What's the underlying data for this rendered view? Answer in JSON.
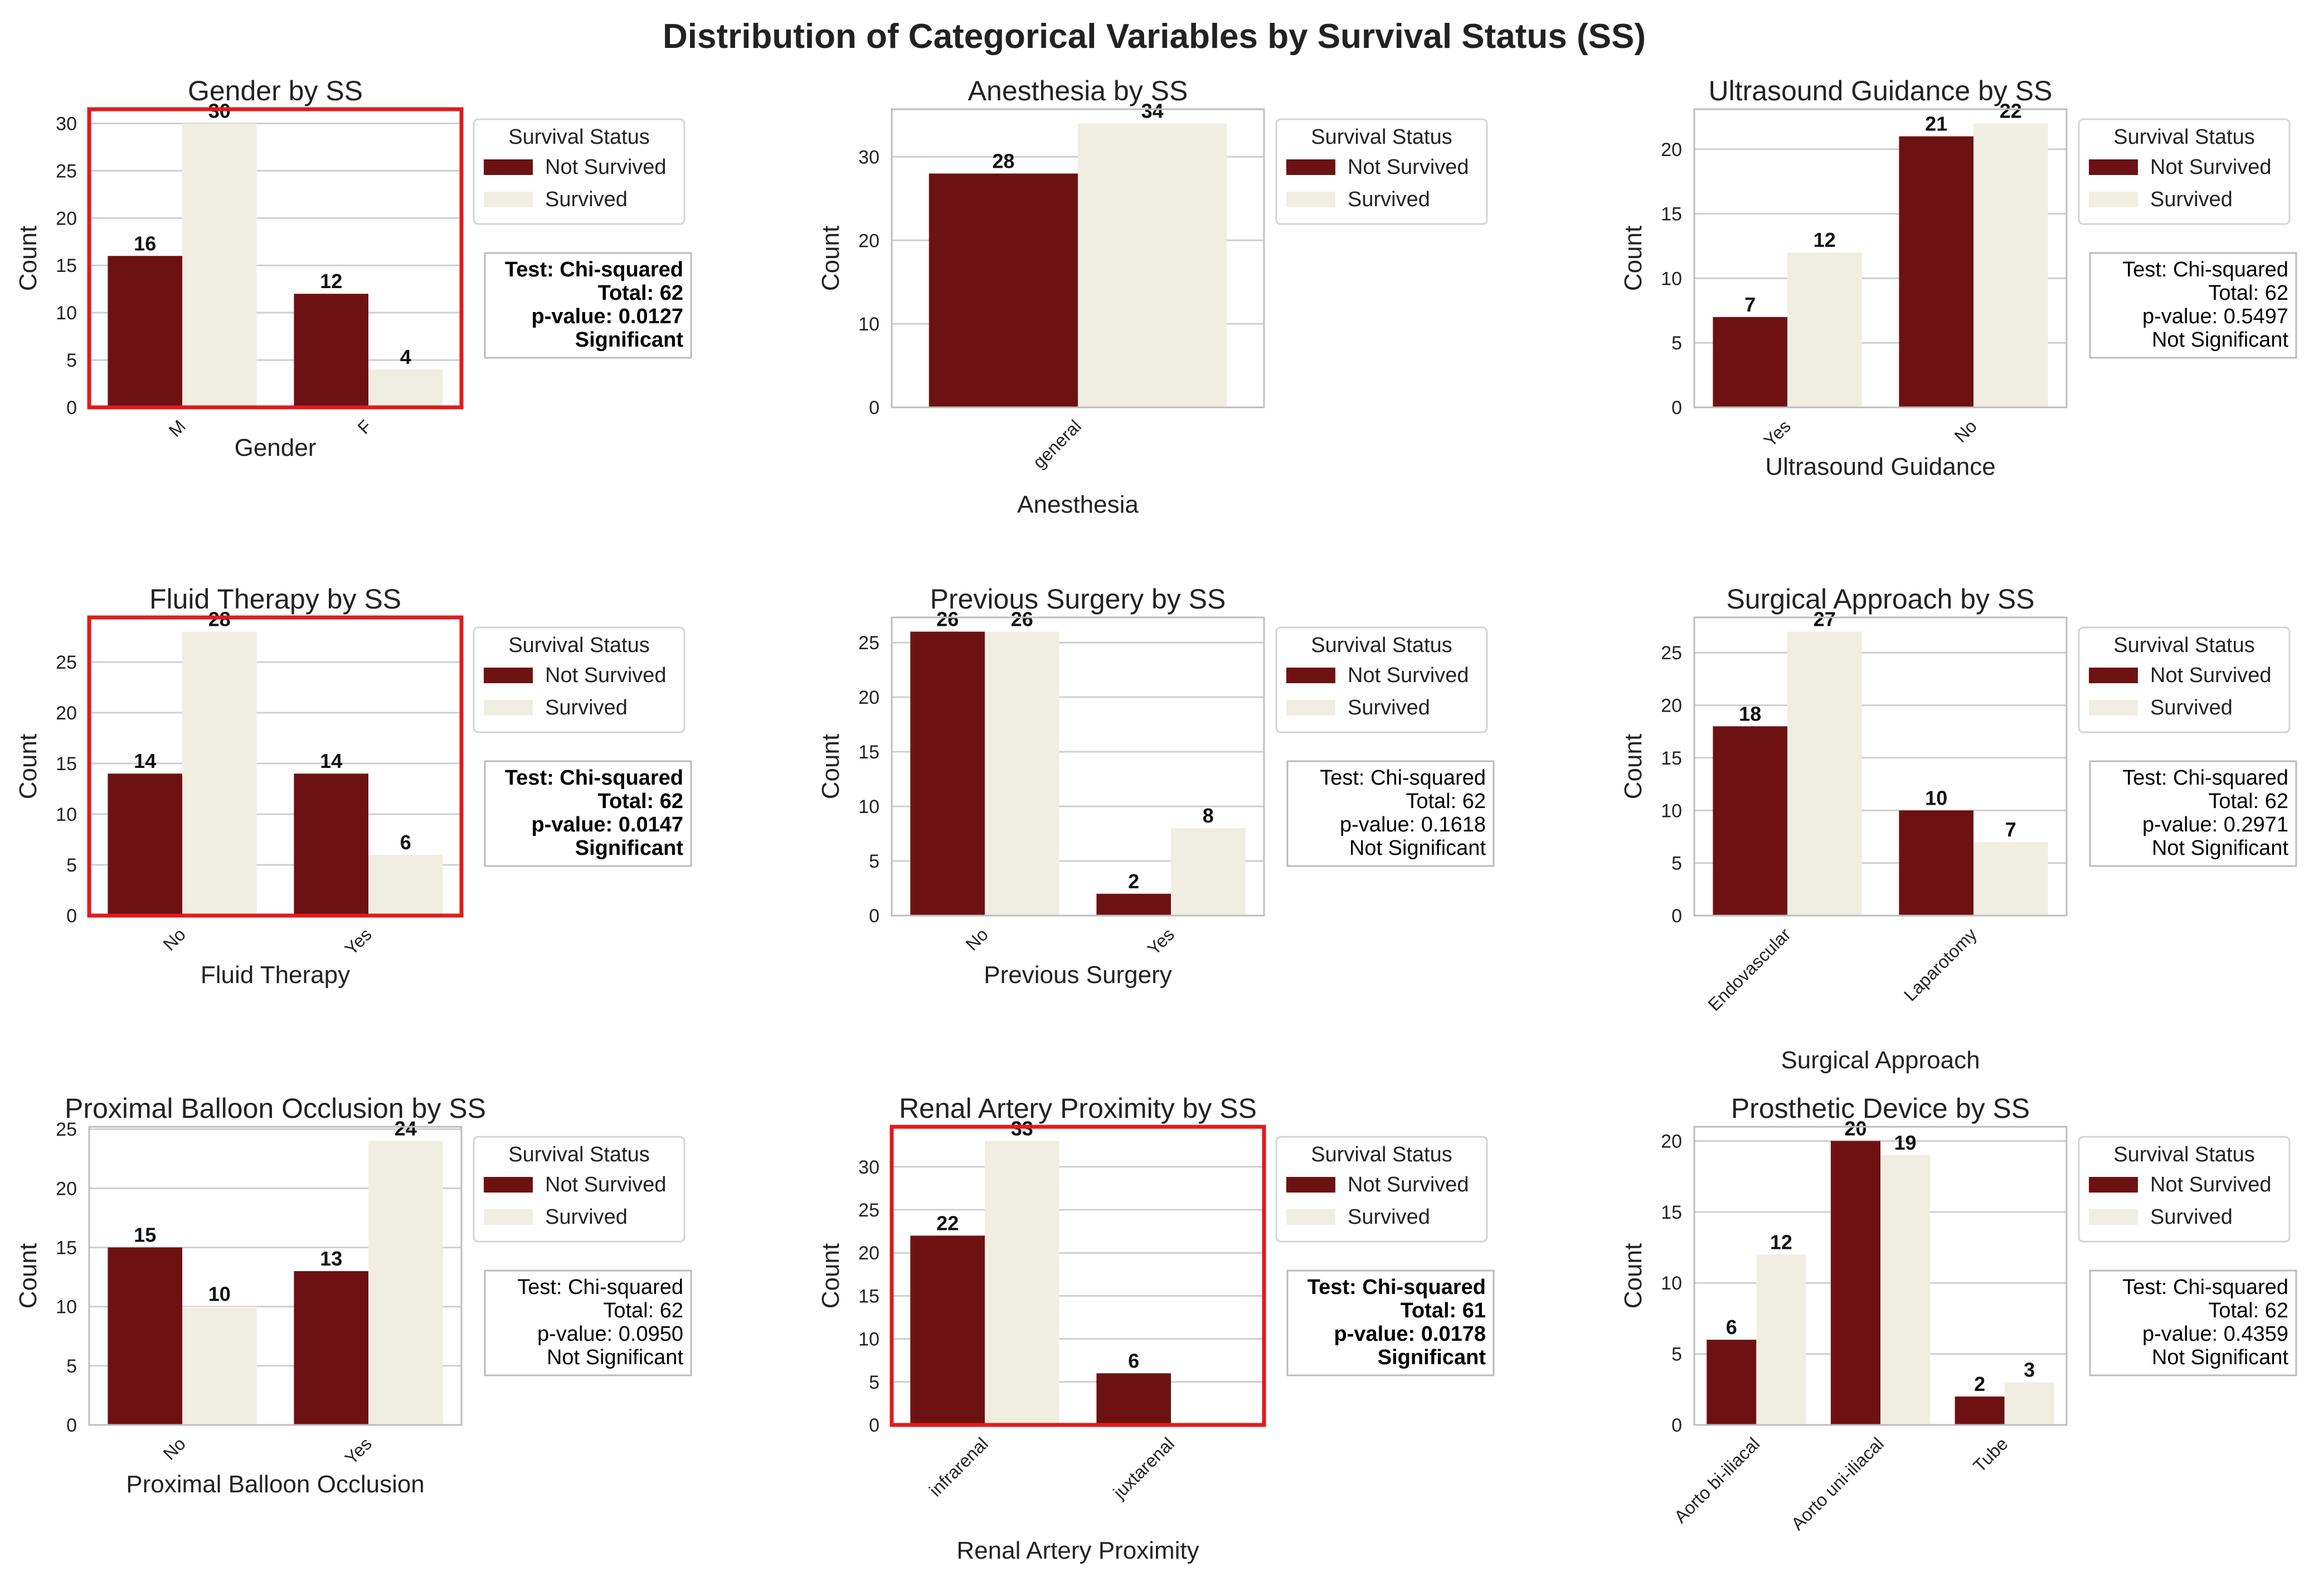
{
  "figure_title": "Distribution of Categorical Variables by Survival Status (SS)",
  "colors": {
    "not_survived": "#6e1112",
    "survived": "#f0eee1",
    "highlight": "#e31a1c",
    "grid": "#cfcfcf",
    "axis": "#bdbdbd",
    "text": "#222222"
  },
  "legend": {
    "title": "Survival Status",
    "entries": [
      "Not Survived",
      "Survived"
    ]
  },
  "chart_data": [
    {
      "type": "bar",
      "title": "Gender by SS",
      "xlabel": "Gender",
      "ylabel": "Count",
      "categories": [
        "M",
        "F"
      ],
      "series": [
        {
          "name": "Not Survived",
          "values": [
            16,
            12
          ]
        },
        {
          "name": "Survived",
          "values": [
            30,
            4
          ]
        }
      ],
      "ylim": [
        0,
        31.5
      ],
      "yticks": [
        0,
        5,
        10,
        15,
        20,
        25,
        30
      ],
      "ytick_labels": [
        "0",
        "5",
        "10",
        "15",
        "20",
        "25",
        "30"
      ],
      "stats": [
        "Test: Chi-squared",
        "Total: 62",
        "p-value: 0.0127",
        "Significant"
      ],
      "significant": true,
      "highlighted": true,
      "legend_placement": "upper right outside"
    },
    {
      "type": "bar",
      "title": "Anesthesia by SS",
      "xlabel": "Anesthesia",
      "ylabel": "Count",
      "categories": [
        "general"
      ],
      "series": [
        {
          "name": "Not Survived",
          "values": [
            28
          ]
        },
        {
          "name": "Survived",
          "values": [
            34
          ]
        }
      ],
      "ylim": [
        0,
        35.7
      ],
      "yticks": [
        0,
        10,
        20,
        30
      ],
      "ytick_labels": [
        "0",
        "10",
        "20",
        "30"
      ],
      "stats": null,
      "significant": false,
      "highlighted": false,
      "legend_placement": "upper right outside"
    },
    {
      "type": "bar",
      "title": "Ultrasound Guidance by SS",
      "xlabel": "Ultrasound Guidance",
      "ylabel": "Count",
      "categories": [
        "Yes",
        "No"
      ],
      "series": [
        {
          "name": "Not Survived",
          "values": [
            7,
            21
          ]
        },
        {
          "name": "Survived",
          "values": [
            12,
            22
          ]
        }
      ],
      "ylim": [
        0,
        23.1
      ],
      "yticks": [
        0,
        5,
        10,
        15,
        20
      ],
      "ytick_labels": [
        "0",
        "5",
        "10",
        "15",
        "20"
      ],
      "stats": [
        "Test: Chi-squared",
        "Total: 62",
        "p-value: 0.5497",
        "Not Significant"
      ],
      "significant": false,
      "highlighted": false,
      "legend_placement": "upper right outside"
    },
    {
      "type": "bar",
      "title": "Fluid Therapy by SS",
      "xlabel": "Fluid Therapy",
      "ylabel": "Count",
      "categories": [
        "No",
        "Yes"
      ],
      "series": [
        {
          "name": "Not Survived",
          "values": [
            14,
            14
          ]
        },
        {
          "name": "Survived",
          "values": [
            28,
            6
          ]
        }
      ],
      "ylim": [
        0,
        29.4
      ],
      "yticks": [
        0,
        5,
        10,
        15,
        20,
        25
      ],
      "ytick_labels": [
        "0",
        "5",
        "10",
        "15",
        "20",
        "25"
      ],
      "stats": [
        "Test: Chi-squared",
        "Total: 62",
        "p-value: 0.0147",
        "Significant"
      ],
      "significant": true,
      "highlighted": true,
      "legend_placement": "upper right outside"
    },
    {
      "type": "bar",
      "title": "Previous Surgery by SS",
      "xlabel": "Previous Surgery",
      "ylabel": "Count",
      "categories": [
        "No",
        "Yes"
      ],
      "series": [
        {
          "name": "Not Survived",
          "values": [
            26,
            2
          ]
        },
        {
          "name": "Survived",
          "values": [
            26,
            8
          ]
        }
      ],
      "ylim": [
        0,
        27.3
      ],
      "yticks": [
        0,
        5,
        10,
        15,
        20,
        25
      ],
      "ytick_labels": [
        "0",
        "5",
        "10",
        "15",
        "20",
        "25"
      ],
      "stats": [
        "Test: Chi-squared",
        "Total: 62",
        "p-value: 0.1618",
        "Not Significant"
      ],
      "significant": false,
      "highlighted": false,
      "legend_placement": "upper right outside"
    },
    {
      "type": "bar",
      "title": "Surgical Approach by SS",
      "xlabel": "Surgical Approach",
      "ylabel": "Count",
      "categories": [
        "Endovascular",
        "Laparotomy"
      ],
      "series": [
        {
          "name": "Not Survived",
          "values": [
            18,
            10
          ]
        },
        {
          "name": "Survived",
          "values": [
            27,
            7
          ]
        }
      ],
      "ylim": [
        0,
        28.35
      ],
      "yticks": [
        0,
        5,
        10,
        15,
        20,
        25
      ],
      "ytick_labels": [
        "0",
        "5",
        "10",
        "15",
        "20",
        "25"
      ],
      "stats": [
        "Test: Chi-squared",
        "Total: 62",
        "p-value: 0.2971",
        "Not Significant"
      ],
      "significant": false,
      "highlighted": false,
      "legend_placement": "upper right outside"
    },
    {
      "type": "bar",
      "title": "Proximal Balloon Occlusion by SS",
      "xlabel": "Proximal Balloon Occlusion",
      "ylabel": "Count",
      "categories": [
        "No",
        "Yes"
      ],
      "series": [
        {
          "name": "Not Survived",
          "values": [
            15,
            13
          ]
        },
        {
          "name": "Survived",
          "values": [
            10,
            24
          ]
        }
      ],
      "ylim": [
        0,
        25.2
      ],
      "yticks": [
        0,
        5,
        10,
        15,
        20,
        25
      ],
      "ytick_labels": [
        "0",
        "5",
        "10",
        "15",
        "20",
        "25"
      ],
      "stats": [
        "Test: Chi-squared",
        "Total: 62",
        "p-value: 0.0950",
        "Not Significant"
      ],
      "significant": false,
      "highlighted": false,
      "legend_placement": "upper right outside"
    },
    {
      "type": "bar",
      "title": "Renal Artery Proximity by SS",
      "xlabel": "Renal Artery Proximity",
      "ylabel": "Count",
      "categories": [
        "infrarenal",
        "juxtarenal"
      ],
      "series": [
        {
          "name": "Not Survived",
          "values": [
            22,
            6
          ]
        },
        {
          "name": "Survived",
          "values": [
            33,
            0
          ]
        }
      ],
      "ylim": [
        0,
        34.65
      ],
      "yticks": [
        0,
        5,
        10,
        15,
        20,
        25,
        30
      ],
      "ytick_labels": [
        "0",
        "5",
        "10",
        "15",
        "20",
        "25",
        "30"
      ],
      "stats": [
        "Test: Chi-squared",
        "Total: 61",
        "p-value: 0.0178",
        "Significant"
      ],
      "significant": true,
      "highlighted": true,
      "legend_placement": "upper right outside"
    },
    {
      "type": "bar",
      "title": "Prosthetic Device by SS",
      "xlabel": "Prosthetic Device",
      "ylabel": "Count",
      "categories": [
        "Aorto bi-iliacal",
        "Aorto uni-iliacal",
        "Tube"
      ],
      "series": [
        {
          "name": "Not Survived",
          "values": [
            6,
            20,
            2
          ]
        },
        {
          "name": "Survived",
          "values": [
            12,
            19,
            3
          ]
        }
      ],
      "ylim": [
        0,
        21.0
      ],
      "yticks": [
        0,
        5,
        10,
        15,
        20
      ],
      "ytick_labels": [
        "0",
        "5",
        "10",
        "15",
        "20"
      ],
      "stats": [
        "Test: Chi-squared",
        "Total: 62",
        "p-value: 0.4359",
        "Not Significant"
      ],
      "significant": false,
      "highlighted": false,
      "legend_placement": "upper right outside"
    }
  ]
}
